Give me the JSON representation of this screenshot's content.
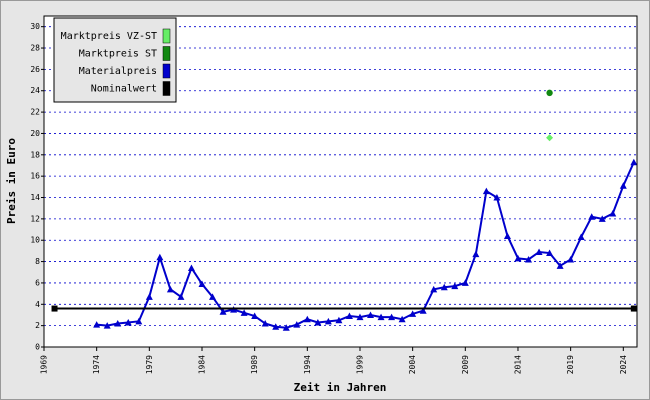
{
  "chart_data": {
    "type": "line",
    "x_label": "Zeit in Jahren",
    "y_label": "Preis in Euro",
    "xlim": [
      1969,
      2025.3
    ],
    "xticks": [
      1969,
      1974,
      1979,
      1984,
      1989,
      1994,
      1999,
      2004,
      2009,
      2014,
      2019,
      2024
    ],
    "ylim": [
      0,
      31
    ],
    "yticks": [
      0,
      2,
      4,
      6,
      8,
      10,
      12,
      14,
      16,
      18,
      20,
      22,
      24,
      26,
      28,
      30
    ],
    "grid": true,
    "legend": "top-left",
    "series": [
      {
        "name": "Marktpreis VZ-ST",
        "color": "#66ee66",
        "marker": "diamond",
        "x": [
          2017
        ],
        "values": [
          19.6
        ]
      },
      {
        "name": "Marktpreis ST",
        "color": "#118811",
        "marker": "circle",
        "x": [
          2017
        ],
        "values": [
          23.8
        ]
      },
      {
        "name": "Materialpreis",
        "color": "#0000cc",
        "marker": "triangle",
        "x": [
          1974,
          1975,
          1976,
          1977,
          1978,
          1979,
          1980,
          1981,
          1982,
          1983,
          1984,
          1985,
          1986,
          1987,
          1988,
          1989,
          1990,
          1991,
          1992,
          1993,
          1994,
          1995,
          1996,
          1997,
          1998,
          1999,
          2000,
          2001,
          2002,
          2003,
          2004,
          2005,
          2006,
          2007,
          2008,
          2009,
          2010,
          2011,
          2012,
          2013,
          2014,
          2015,
          2016,
          2017,
          2018,
          2019,
          2020,
          2021,
          2022,
          2023,
          2024,
          2025
        ],
        "values": [
          2.1,
          2.0,
          2.2,
          2.3,
          2.4,
          4.7,
          8.4,
          5.4,
          4.7,
          7.4,
          5.9,
          4.7,
          3.3,
          3.5,
          3.2,
          2.9,
          2.2,
          1.9,
          1.8,
          2.1,
          2.6,
          2.3,
          2.4,
          2.5,
          2.9,
          2.8,
          3.0,
          2.8,
          2.8,
          2.6,
          3.1,
          3.4,
          5.4,
          5.6,
          5.7,
          6.0,
          8.7,
          14.6,
          14.0,
          10.4,
          8.3,
          8.2,
          8.9,
          8.8,
          7.6,
          8.2,
          10.3,
          12.2,
          12.0,
          12.5,
          15.1,
          17.3
        ]
      },
      {
        "name": "Nominalwert",
        "color": "#000000",
        "marker": "square",
        "x": [
          1970,
          2025
        ],
        "values": [
          3.6,
          3.6
        ]
      }
    ]
  }
}
